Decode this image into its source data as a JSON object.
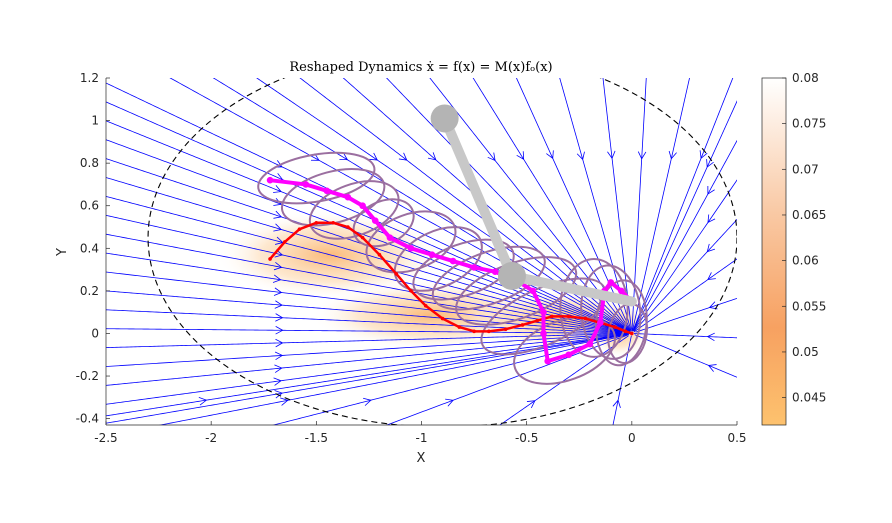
{
  "chart_data": {
    "type": "streamplot",
    "title": "Reshaped Dynamics ẋ = f(x) = M(x)fₒ(x)",
    "xlabel": "X",
    "ylabel": "Y",
    "xlim": [
      -2.5,
      0.5
    ],
    "ylim": [
      -0.43,
      1.2
    ],
    "xticks": [
      "-2.5",
      "-2",
      "-1.5",
      "-1",
      "-0.5",
      "0",
      "0.5"
    ],
    "yticks": [
      "-0.4",
      "-0.2",
      "0",
      "0.2",
      "0.4",
      "0.6",
      "0.8",
      "1",
      "1.2"
    ],
    "colorbar": {
      "min": 0.042,
      "max": 0.08,
      "ticks": [
        "0.045",
        "0.05",
        "0.055",
        "0.06",
        "0.065",
        "0.07",
        "0.075",
        "0.08"
      ],
      "color_low": "#fdc26e",
      "color_mid": "#f7a161",
      "color_high": "#ffffff"
    },
    "attractor": [
      0,
      0
    ],
    "boundary": {
      "center": [
        -0.9,
        0.45
      ],
      "radius_x": 1.4,
      "radius_y": 0.89
    },
    "streamline_color": "#0000ff",
    "demo_red": {
      "color": "#ff0000",
      "x": [
        -1.72,
        -1.65,
        -1.58,
        -1.5,
        -1.42,
        -1.35,
        -1.28,
        -1.2,
        -1.12,
        -1.05,
        -0.98,
        -0.9,
        -0.82,
        -0.75,
        -0.68,
        -0.6,
        -0.52,
        -0.45,
        -0.38,
        -0.3,
        -0.22,
        -0.15,
        -0.08,
        -0.03,
        0
      ],
      "y": [
        0.35,
        0.43,
        0.49,
        0.52,
        0.52,
        0.5,
        0.45,
        0.37,
        0.28,
        0.2,
        0.13,
        0.07,
        0.03,
        0.01,
        0.01,
        0.02,
        0.04,
        0.06,
        0.08,
        0.08,
        0.07,
        0.05,
        0.03,
        0.01,
        0
      ]
    },
    "demo_magenta": {
      "color": "#ff00ff",
      "x": [
        -1.72,
        -1.55,
        -1.45,
        -1.35,
        -1.28,
        -1.22,
        -1.15,
        -1.05,
        -0.95,
        -0.85,
        -0.75,
        -0.65,
        -0.55,
        -0.47,
        -0.42,
        -0.42,
        -0.4,
        -0.3,
        -0.2,
        -0.15,
        -0.13,
        -0.1,
        -0.05,
        0
      ],
      "y": [
        0.72,
        0.7,
        0.67,
        0.64,
        0.6,
        0.53,
        0.45,
        0.4,
        0.37,
        0.34,
        0.31,
        0.29,
        0.25,
        0.2,
        0.1,
        0,
        -0.13,
        -0.1,
        -0.05,
        0.05,
        0.2,
        0.24,
        0.2,
        0.15
      ]
    },
    "arm": {
      "color": "#c8c8c8",
      "points": [
        [
          -0.89,
          1.01
        ],
        [
          -0.57,
          0.27
        ],
        [
          0,
          0.15
        ]
      ]
    },
    "ellipse_color": "#9b6fa0",
    "ellipses": [
      {
        "c": [
          -1.5,
          0.73
        ],
        "rx": 0.28,
        "ry": 0.11,
        "rot": -10
      },
      {
        "c": [
          -1.42,
          0.64
        ],
        "rx": 0.25,
        "ry": 0.12,
        "rot": -15
      },
      {
        "c": [
          -1.32,
          0.58
        ],
        "rx": 0.22,
        "ry": 0.12,
        "rot": -20
      },
      {
        "c": [
          -1.18,
          0.52
        ],
        "rx": 0.15,
        "ry": 0.1,
        "rot": -25
      },
      {
        "c": [
          -1.05,
          0.43
        ],
        "rx": 0.22,
        "ry": 0.13,
        "rot": -20
      },
      {
        "c": [
          -0.92,
          0.35
        ],
        "rx": 0.22,
        "ry": 0.13,
        "rot": -25
      },
      {
        "c": [
          -0.8,
          0.3
        ],
        "rx": 0.25,
        "ry": 0.12,
        "rot": -20
      },
      {
        "c": [
          -0.68,
          0.26
        ],
        "rx": 0.28,
        "ry": 0.12,
        "rot": -20
      },
      {
        "c": [
          -0.55,
          0.2
        ],
        "rx": 0.3,
        "ry": 0.13,
        "rot": -20
      },
      {
        "c": [
          -0.42,
          0.08
        ],
        "rx": 0.32,
        "ry": 0.13,
        "rot": -25
      },
      {
        "c": [
          -0.32,
          -0.08
        ],
        "rx": 0.25,
        "ry": 0.14,
        "rot": -20
      },
      {
        "c": [
          -0.18,
          0.12
        ],
        "rx": 0.16,
        "ry": 0.23,
        "rot": 0
      },
      {
        "c": [
          -0.1,
          0.1
        ],
        "rx": 0.14,
        "ry": 0.22,
        "rot": -5
      },
      {
        "c": [
          -0.05,
          0.05
        ],
        "rx": 0.12,
        "ry": 0.2,
        "rot": 5
      },
      {
        "c": [
          -0.02,
          0
        ],
        "rx": 0.09,
        "ry": 0.14,
        "rot": 10
      }
    ]
  }
}
